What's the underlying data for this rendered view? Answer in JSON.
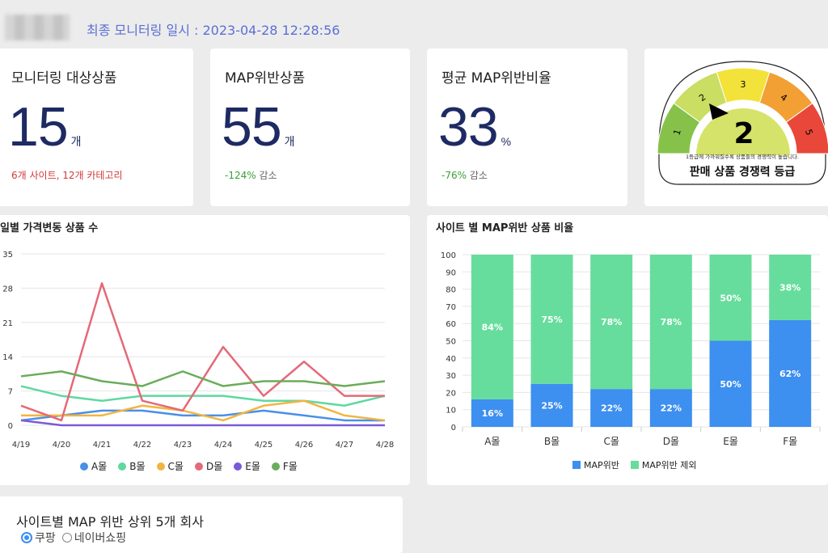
{
  "header": {
    "monitor_text": "최종 모니터링 일시 : 2023-04-28 12:28:56"
  },
  "kpis": [
    {
      "title": "모니터링 대상상품",
      "value": "15",
      "unit": "개",
      "sub": "6개 사이트, 12개 카테고리"
    },
    {
      "title": "MAP위반상품",
      "value": "55",
      "unit": "개",
      "sub_pct": "-124%",
      "sub_text": "감소"
    },
    {
      "title": "평균 MAP위반비율",
      "value": "33",
      "unit": "%",
      "sub_pct": "-76%",
      "sub_text": "감소"
    }
  ],
  "gauge": {
    "levels": [
      "1",
      "2",
      "3",
      "4",
      "5"
    ],
    "colors": [
      "#86c24a",
      "#c9de62",
      "#f3e23a",
      "#f2a033",
      "#e8473a"
    ],
    "grade": "2",
    "note": "1등급에 가까워질수록 상품들의 경쟁력이 높습니다.",
    "title": "판매 상품 경쟁력 등급"
  },
  "line_panel": {
    "title": "일별 가격변동 상품 수"
  },
  "bar_panel": {
    "title": "사이트 별 MAP위반 상품 비율"
  },
  "bottom_panel": {
    "title": "사이트별 MAP 위반 상위 5개 회사",
    "radio_1": "쿠팡",
    "radio_2": "네이버쇼핑"
  },
  "chart_data": [
    {
      "type": "line",
      "title": "일별 가격변동 상품 수",
      "x": [
        "4/19",
        "4/20",
        "4/21",
        "4/22",
        "4/23",
        "4/24",
        "4/25",
        "4/26",
        "4/27",
        "4/28"
      ],
      "yticks": [
        0,
        7,
        14,
        21,
        28,
        35
      ],
      "ylim": [
        0,
        35
      ],
      "series": [
        {
          "name": "A몰",
          "color": "#4a8fe7",
          "values": [
            1,
            2,
            3,
            3,
            2,
            2,
            3,
            2,
            1,
            1
          ]
        },
        {
          "name": "B몰",
          "color": "#5fd8a0",
          "values": [
            8,
            6,
            5,
            6,
            6,
            6,
            5,
            5,
            4,
            6
          ]
        },
        {
          "name": "C몰",
          "color": "#f2b541",
          "values": [
            2,
            2,
            2,
            4,
            3,
            1,
            4,
            5,
            2,
            1
          ]
        },
        {
          "name": "D몰",
          "color": "#e36a78",
          "values": [
            4,
            1,
            29,
            5,
            3,
            16,
            6,
            13,
            6,
            6
          ]
        },
        {
          "name": "E몰",
          "color": "#7a5ad6",
          "values": [
            1,
            0,
            0,
            0,
            0,
            0,
            0,
            0,
            0,
            0
          ]
        },
        {
          "name": "F몰",
          "color": "#6aac5a",
          "values": [
            10,
            11,
            9,
            8,
            11,
            8,
            9,
            9,
            8,
            9
          ]
        }
      ]
    },
    {
      "type": "bar",
      "title": "사이트 별 MAP위반 상품 비율",
      "categories": [
        "A몰",
        "B몰",
        "C몰",
        "D몰",
        "E몰",
        "F몰"
      ],
      "yticks": [
        0,
        10,
        20,
        30,
        40,
        50,
        60,
        70,
        80,
        90,
        100
      ],
      "ylim": [
        0,
        100
      ],
      "series": [
        {
          "name": "MAP위반",
          "color": "#3d8ff0",
          "values": [
            16,
            25,
            22,
            22,
            50,
            62
          ],
          "labels": [
            "16%",
            "25%",
            "22%",
            "22%",
            "50%",
            "62%"
          ]
        },
        {
          "name": "MAP위반 제외",
          "color": "#66dd9c",
          "values": [
            84,
            75,
            78,
            78,
            50,
            38
          ],
          "labels": [
            "84%",
            "75%",
            "78%",
            "78%",
            "50%",
            "38%"
          ]
        }
      ]
    }
  ]
}
